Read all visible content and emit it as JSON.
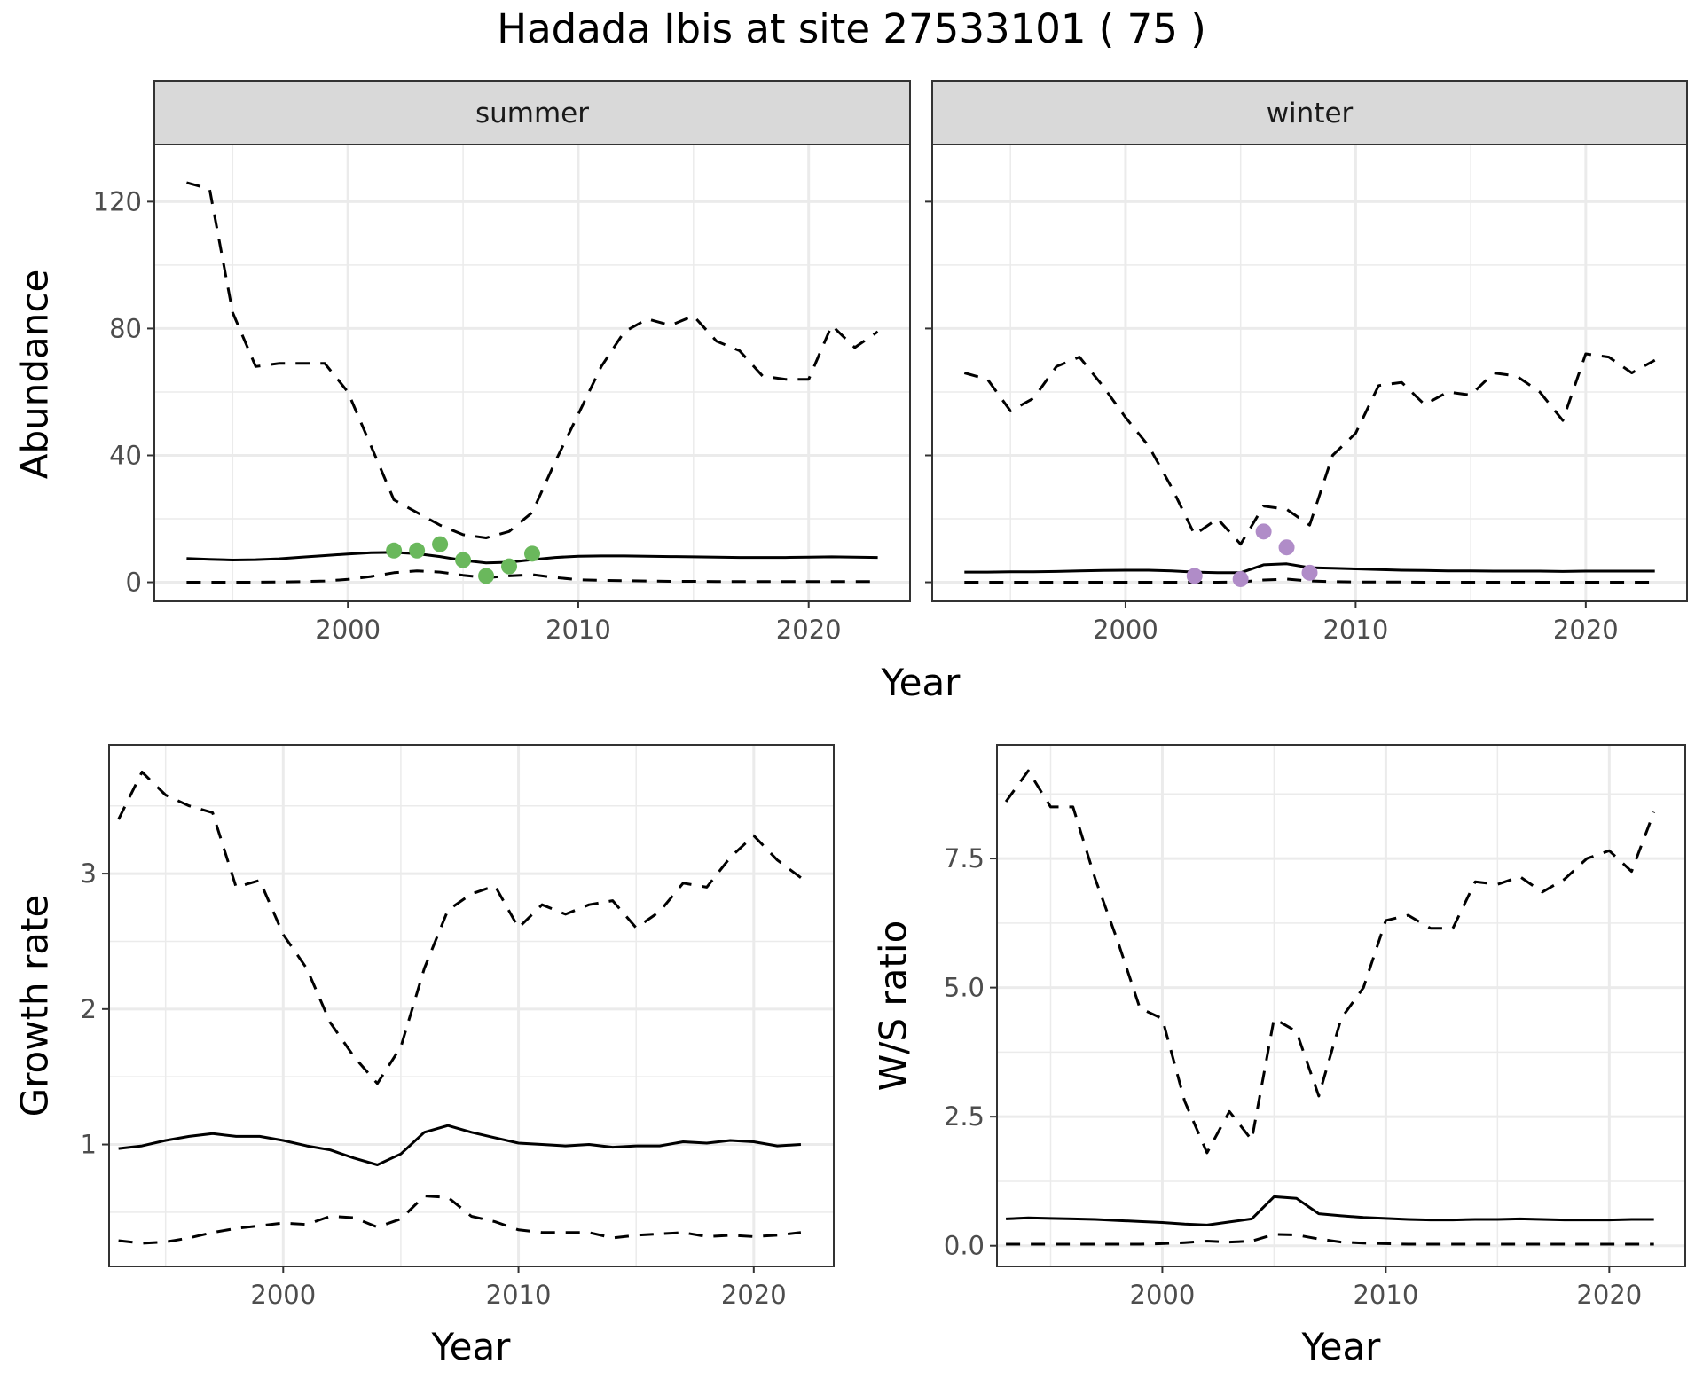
{
  "title": "Hadada Ibis at site 27533101 ( 75 )",
  "colors": {
    "summer_points": "#6ab85c",
    "winter_points": "#b08cc8",
    "strip_fill": "#d9d9d9",
    "grid": "#ebebeb",
    "line": "#000000"
  },
  "chart_data": [
    {
      "type": "line",
      "facet": "summer",
      "strip_label": "summer",
      "xlabel": "Year",
      "ylabel": "Abundance",
      "xlim": [
        1991.6,
        2024.4
      ],
      "ylim": [
        -6,
        138
      ],
      "xticks": [
        2000,
        2010,
        2020
      ],
      "yticks": [
        0,
        40,
        80,
        120
      ],
      "grid": true,
      "series": [
        {
          "style": "solid",
          "x": [
            1993,
            1994,
            1995,
            1996,
            1997,
            1998,
            1999,
            2000,
            2001,
            2002,
            2003,
            2004,
            2005,
            2006,
            2007,
            2008,
            2009,
            2010,
            2011,
            2012,
            2013,
            2014,
            2015,
            2016,
            2017,
            2018,
            2019,
            2020,
            2021,
            2022,
            2023
          ],
          "values": [
            7.5,
            7.2,
            7.0,
            7.1,
            7.4,
            7.9,
            8.4,
            8.9,
            9.3,
            9.4,
            9.0,
            8.1,
            6.9,
            6.1,
            6.3,
            7.1,
            7.8,
            8.2,
            8.3,
            8.3,
            8.2,
            8.1,
            8.0,
            7.9,
            7.8,
            7.8,
            7.8,
            7.9,
            8.0,
            7.9,
            7.8
          ]
        },
        {
          "style": "dashed",
          "x": [
            1993,
            1994,
            1995,
            1996,
            1997,
            1998,
            1999,
            2000,
            2001,
            2002,
            2003,
            2004,
            2005,
            2006,
            2007,
            2008,
            2009,
            2010,
            2011,
            2012,
            2013,
            2014,
            2015,
            2016,
            2017,
            2018,
            2019,
            2020,
            2021,
            2022,
            2023
          ],
          "values": [
            126,
            124,
            85,
            68,
            69,
            69,
            69,
            60,
            43,
            26,
            22,
            18,
            15,
            14,
            16,
            22,
            38,
            53,
            68,
            79,
            83,
            81,
            84,
            76,
            73,
            65,
            64,
            64,
            81,
            74,
            79
          ]
        },
        {
          "style": "dashed",
          "x": [
            1993,
            1994,
            1995,
            1996,
            1997,
            1998,
            1999,
            2000,
            2001,
            2002,
            2003,
            2004,
            2005,
            2006,
            2007,
            2008,
            2009,
            2010,
            2011,
            2012,
            2013,
            2014,
            2015,
            2016,
            2017,
            2018,
            2019,
            2020,
            2021,
            2022,
            2023
          ],
          "values": [
            0,
            0,
            0,
            0,
            0.1,
            0.2,
            0.4,
            0.9,
            1.8,
            3.0,
            3.6,
            3.2,
            2.2,
            1.4,
            2.0,
            2.4,
            1.5,
            0.8,
            0.6,
            0.5,
            0.4,
            0.3,
            0.3,
            0.2,
            0.2,
            0.2,
            0.2,
            0.2,
            0.2,
            0.2,
            0.2
          ]
        }
      ],
      "points": {
        "x": [
          2002,
          2003,
          2004,
          2005,
          2006,
          2007,
          2008
        ],
        "values": [
          10,
          10,
          12,
          7,
          2,
          5,
          9
        ],
        "color": "#6ab85c"
      }
    },
    {
      "type": "line",
      "facet": "winter",
      "strip_label": "winter",
      "xlabel": "Year",
      "ylabel": "",
      "xlim": [
        1991.6,
        2024.4
      ],
      "ylim": [
        -6,
        138
      ],
      "xticks": [
        2000,
        2010,
        2020
      ],
      "yticks": [
        0,
        40,
        80,
        120
      ],
      "grid": true,
      "series": [
        {
          "style": "solid",
          "x": [
            1993,
            1994,
            1995,
            1996,
            1997,
            1998,
            1999,
            2000,
            2001,
            2002,
            2003,
            2004,
            2005,
            2006,
            2007,
            2008,
            2009,
            2010,
            2011,
            2012,
            2013,
            2014,
            2015,
            2016,
            2017,
            2018,
            2019,
            2020,
            2021,
            2022,
            2023
          ],
          "values": [
            3.2,
            3.2,
            3.3,
            3.3,
            3.4,
            3.6,
            3.7,
            3.8,
            3.8,
            3.6,
            3.2,
            3.0,
            3.0,
            5.5,
            5.8,
            4.6,
            4.4,
            4.2,
            4.0,
            3.8,
            3.7,
            3.6,
            3.6,
            3.5,
            3.5,
            3.5,
            3.4,
            3.5,
            3.5,
            3.5,
            3.5
          ]
        },
        {
          "style": "dashed",
          "x": [
            1993,
            1994,
            1995,
            1996,
            1997,
            1998,
            1999,
            2000,
            2001,
            2002,
            2003,
            2004,
            2005,
            2006,
            2007,
            2008,
            2009,
            2010,
            2011,
            2012,
            2013,
            2014,
            2015,
            2016,
            2017,
            2018,
            2019,
            2020,
            2021,
            2022,
            2023
          ],
          "values": [
            66,
            64,
            54,
            58,
            68,
            71,
            62,
            52,
            43,
            30,
            15,
            20,
            12,
            24,
            23,
            18,
            40,
            47,
            62,
            63,
            56,
            60,
            59,
            66,
            65,
            60,
            51,
            72,
            71,
            66,
            70
          ]
        },
        {
          "style": "dashed",
          "x": [
            1993,
            1994,
            1995,
            1996,
            1997,
            1998,
            1999,
            2000,
            2001,
            2002,
            2003,
            2004,
            2005,
            2006,
            2007,
            2008,
            2009,
            2010,
            2011,
            2012,
            2013,
            2014,
            2015,
            2016,
            2017,
            2018,
            2019,
            2020,
            2021,
            2022,
            2023
          ],
          "values": [
            0,
            0,
            0,
            0,
            0,
            0,
            0,
            0,
            0,
            0,
            0,
            0,
            0.1,
            0.7,
            1.0,
            0.4,
            0.2,
            0.1,
            0.1,
            0.1,
            0,
            0,
            0,
            0,
            0,
            0,
            0,
            0,
            0,
            0,
            0
          ]
        }
      ],
      "points": {
        "x": [
          2003,
          2005,
          2006,
          2007,
          2008
        ],
        "values": [
          2,
          1,
          16,
          11,
          3
        ],
        "color": "#b08cc8"
      }
    },
    {
      "type": "line",
      "xlabel": "Year",
      "ylabel": "Growth rate",
      "xlim": [
        1992.6,
        2023.4
      ],
      "ylim": [
        0.1,
        3.95
      ],
      "xticks": [
        2000,
        2010,
        2020
      ],
      "yticks": [
        1,
        2,
        3
      ],
      "grid": true,
      "series": [
        {
          "style": "solid",
          "x": [
            1993,
            1994,
            1995,
            1996,
            1997,
            1998,
            1999,
            2000,
            2001,
            2002,
            2003,
            2004,
            2005,
            2006,
            2007,
            2008,
            2009,
            2010,
            2011,
            2012,
            2013,
            2014,
            2015,
            2016,
            2017,
            2018,
            2019,
            2020,
            2021,
            2022
          ],
          "values": [
            0.97,
            0.99,
            1.03,
            1.06,
            1.08,
            1.06,
            1.06,
            1.03,
            0.99,
            0.96,
            0.9,
            0.85,
            0.93,
            1.09,
            1.14,
            1.09,
            1.05,
            1.01,
            1.0,
            0.99,
            1.0,
            0.98,
            0.99,
            0.99,
            1.02,
            1.01,
            1.03,
            1.02,
            0.99,
            1.0
          ]
        },
        {
          "style": "dashed",
          "x": [
            1993,
            1994,
            1995,
            1996,
            1997,
            1998,
            1999,
            2000,
            2001,
            2002,
            2003,
            2004,
            2005,
            2006,
            2007,
            2008,
            2009,
            2010,
            2011,
            2012,
            2013,
            2014,
            2015,
            2016,
            2017,
            2018,
            2019,
            2020,
            2021,
            2022
          ],
          "values": [
            3.4,
            3.75,
            3.58,
            3.5,
            3.45,
            2.9,
            2.95,
            2.55,
            2.3,
            1.9,
            1.65,
            1.45,
            1.72,
            2.3,
            2.73,
            2.85,
            2.91,
            2.6,
            2.77,
            2.7,
            2.77,
            2.8,
            2.6,
            2.72,
            2.93,
            2.9,
            3.12,
            3.28,
            3.1,
            2.97
          ]
        },
        {
          "style": "dashed",
          "x": [
            1993,
            1994,
            1995,
            1996,
            1997,
            1998,
            1999,
            2000,
            2001,
            2002,
            2003,
            2004,
            2005,
            2006,
            2007,
            2008,
            2009,
            2010,
            2011,
            2012,
            2013,
            2014,
            2015,
            2016,
            2017,
            2018,
            2019,
            2020,
            2021,
            2022
          ],
          "values": [
            0.29,
            0.27,
            0.28,
            0.31,
            0.35,
            0.38,
            0.4,
            0.42,
            0.41,
            0.47,
            0.46,
            0.39,
            0.45,
            0.62,
            0.61,
            0.47,
            0.43,
            0.37,
            0.35,
            0.35,
            0.35,
            0.31,
            0.33,
            0.34,
            0.35,
            0.32,
            0.33,
            0.32,
            0.33,
            0.35
          ]
        }
      ]
    },
    {
      "type": "line",
      "xlabel": "Year",
      "ylabel": "W/S ratio",
      "xlim": [
        1992.6,
        2023.4
      ],
      "ylim": [
        -0.4,
        9.7
      ],
      "xticks": [
        2000,
        2010,
        2020
      ],
      "yticks": [
        0.0,
        2.5,
        5.0,
        7.5
      ],
      "ytick_labels": [
        "0.0",
        "2.5",
        "5.0",
        "7.5"
      ],
      "grid": true,
      "series": [
        {
          "style": "solid",
          "x": [
            1993,
            1994,
            1995,
            1996,
            1997,
            1998,
            1999,
            2000,
            2001,
            2002,
            2003,
            2004,
            2005,
            2006,
            2007,
            2008,
            2009,
            2010,
            2011,
            2012,
            2013,
            2014,
            2015,
            2016,
            2017,
            2018,
            2019,
            2020,
            2021,
            2022
          ],
          "values": [
            0.52,
            0.54,
            0.53,
            0.52,
            0.51,
            0.49,
            0.47,
            0.45,
            0.42,
            0.4,
            0.46,
            0.52,
            0.95,
            0.92,
            0.62,
            0.58,
            0.55,
            0.53,
            0.51,
            0.5,
            0.5,
            0.51,
            0.51,
            0.52,
            0.51,
            0.5,
            0.5,
            0.5,
            0.51,
            0.51
          ]
        },
        {
          "style": "dashed",
          "x": [
            1993,
            1994,
            1995,
            1996,
            1997,
            1998,
            1999,
            2000,
            2001,
            2002,
            2003,
            2004,
            2005,
            2006,
            2007,
            2008,
            2009,
            2010,
            2011,
            2012,
            2013,
            2014,
            2015,
            2016,
            2017,
            2018,
            2019,
            2020,
            2021,
            2022
          ],
          "values": [
            8.6,
            9.2,
            8.5,
            8.5,
            7.1,
            5.9,
            4.6,
            4.4,
            2.8,
            1.8,
            2.6,
            2.05,
            4.4,
            4.15,
            2.9,
            4.4,
            5.0,
            6.3,
            6.4,
            6.15,
            6.15,
            7.05,
            7.0,
            7.15,
            6.85,
            7.1,
            7.5,
            7.65,
            7.25,
            8.4
          ]
        },
        {
          "style": "dashed",
          "x": [
            1993,
            1994,
            1995,
            1996,
            1997,
            1998,
            1999,
            2000,
            2001,
            2002,
            2003,
            2004,
            2005,
            2006,
            2007,
            2008,
            2009,
            2010,
            2011,
            2012,
            2013,
            2014,
            2015,
            2016,
            2017,
            2018,
            2019,
            2020,
            2021,
            2022
          ],
          "values": [
            0.03,
            0.03,
            0.03,
            0.03,
            0.03,
            0.03,
            0.03,
            0.04,
            0.06,
            0.09,
            0.07,
            0.09,
            0.22,
            0.21,
            0.13,
            0.07,
            0.05,
            0.04,
            0.03,
            0.03,
            0.03,
            0.03,
            0.03,
            0.03,
            0.03,
            0.03,
            0.03,
            0.03,
            0.03,
            0.03
          ]
        }
      ]
    }
  ]
}
